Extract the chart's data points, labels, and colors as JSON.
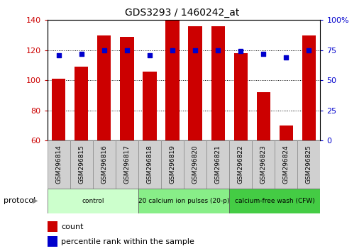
{
  "title": "GDS3293 / 1460242_at",
  "categories": [
    "GSM296814",
    "GSM296815",
    "GSM296816",
    "GSM296817",
    "GSM296818",
    "GSM296819",
    "GSM296820",
    "GSM296821",
    "GSM296822",
    "GSM296823",
    "GSM296824",
    "GSM296825"
  ],
  "bar_values": [
    101,
    109,
    130,
    129,
    106,
    140,
    136,
    136,
    118,
    92,
    70,
    130
  ],
  "dot_values_pct": [
    71,
    72,
    75,
    75,
    71,
    75,
    75,
    75,
    74,
    72,
    69,
    75
  ],
  "bar_color": "#cc0000",
  "dot_color": "#0000cc",
  "ylim_left": [
    60,
    140
  ],
  "ylim_right": [
    0,
    100
  ],
  "yticks_left": [
    60,
    80,
    100,
    120,
    140
  ],
  "yticks_right": [
    0,
    25,
    50,
    75,
    100
  ],
  "ytick_labels_right": [
    "0",
    "25",
    "50",
    "75",
    "100%"
  ],
  "grid_lines": [
    80,
    100,
    120
  ],
  "groups": [
    {
      "label": "control",
      "start": 0,
      "end": 4,
      "color": "#ccffcc"
    },
    {
      "label": "20 calcium ion pulses (20-p)",
      "start": 4,
      "end": 8,
      "color": "#88ee88"
    },
    {
      "label": "calcium-free wash (CFW)",
      "start": 8,
      "end": 12,
      "color": "#44cc44"
    }
  ],
  "legend_count_label": "count",
  "legend_pct_label": "percentile rank within the sample",
  "protocol_label": "protocol",
  "tick_label_color_left": "#cc0000",
  "tick_label_color_right": "#0000cc",
  "xtick_box_color": "#d0d0d0",
  "fig_width": 5.13,
  "fig_height": 3.54,
  "dpi": 100
}
